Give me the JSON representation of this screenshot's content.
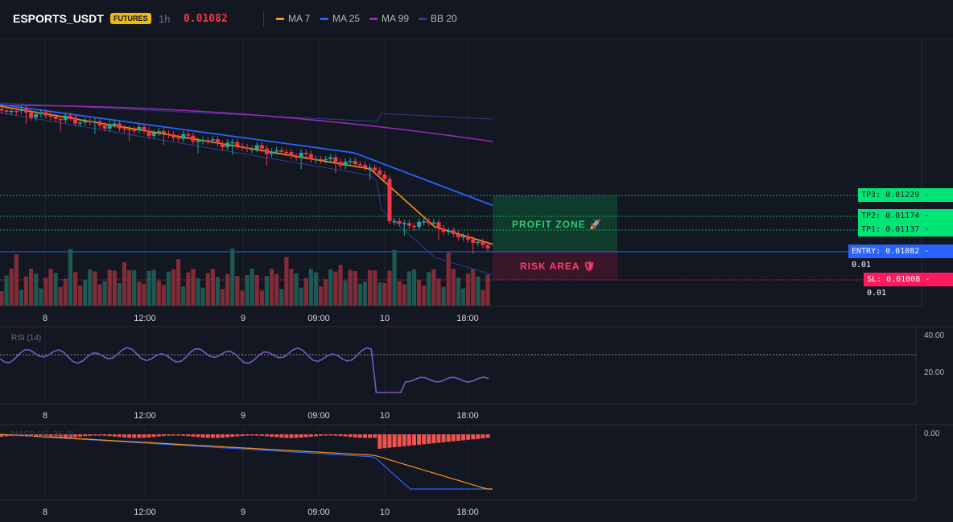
{
  "header": {
    "symbol": "ESPORTS_USDT",
    "badge": "FUTURES",
    "timeframe": "1h",
    "price": "0.01082",
    "legend": [
      {
        "label": "MA 7",
        "color": "#f7931a"
      },
      {
        "label": "MA 25",
        "color": "#2962ff"
      },
      {
        "label": "MA 99",
        "color": "#9c27b0"
      },
      {
        "label": "BB 20",
        "color": "#2a3f8f"
      }
    ]
  },
  "x_axis": {
    "labels": [
      "8",
      "12:00",
      "9",
      "09:00",
      "10",
      "18:00"
    ]
  },
  "levels": {
    "tp3": "TP3: 0.01229 - 0.01",
    "tp2": "TP2: 0.01174 - 0.01",
    "tp1": "TP1: 0.01137 - 0.01",
    "entry": "ENTRY: 0.01082 - 0.01",
    "sl": "SL: 0.01008 - 0.01"
  },
  "zones": {
    "profit": "PROFIT ZONE 🚀",
    "risk": "RISK AREA 🛡"
  },
  "rsi": {
    "label": "RSI (14)",
    "y_labels": [
      "40.00",
      "20.00"
    ]
  },
  "macd": {
    "label": "MACD (12, 26, 9)",
    "y_label": "0.00"
  },
  "colors": {
    "up": "#26a69a",
    "down": "#f23645",
    "bg": "#131722",
    "profit": "#00e676",
    "risk": "#ff1a5e",
    "entry": "#2962ff"
  },
  "chart_data": {
    "type": "candlestick",
    "price_levels": {
      "tp3": 0.01229,
      "tp2": 0.01174,
      "tp1": 0.01137,
      "entry": 0.01082,
      "sl": 0.01008
    },
    "rsi_ylim": [
      0,
      50
    ],
    "rsi_overbought_line": 30
  }
}
